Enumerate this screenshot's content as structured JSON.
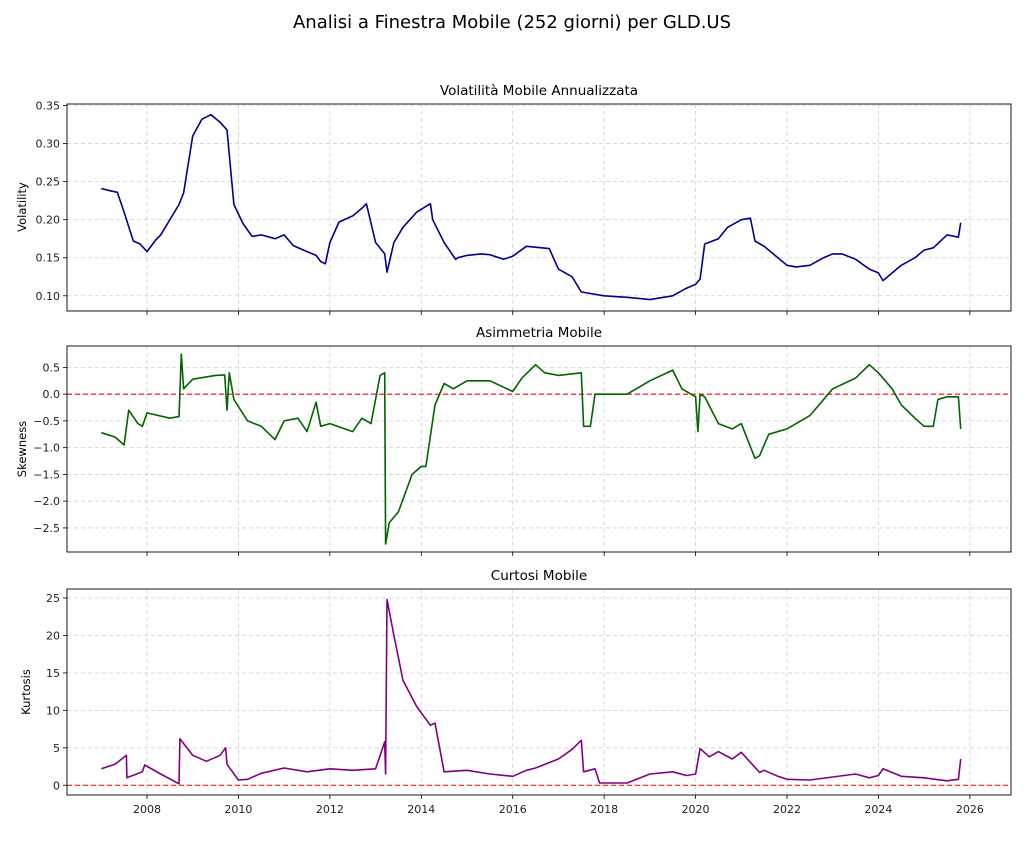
{
  "figure": {
    "suptitle": "Analisi a Finestra Mobile (252 giorni) per GLD.US"
  },
  "chart_data": [
    {
      "type": "line",
      "title": "Volatilità Mobile Annualizzata",
      "xlabel": "",
      "ylabel": "Volatility",
      "color": "#00008b",
      "ylim": [
        0.08,
        0.352
      ],
      "yticks": [
        "0.10",
        "0.15",
        "0.20",
        "0.25",
        "0.30",
        "0.35"
      ],
      "xticks": [
        "2008",
        "2010",
        "2012",
        "2014",
        "2016",
        "2018",
        "2020",
        "2022",
        "2024",
        "2026"
      ],
      "grid": true,
      "x": [
        2007.0,
        2007.2,
        2007.35,
        2007.5,
        2007.7,
        2007.85,
        2008.0,
        2008.2,
        2008.3,
        2008.5,
        2008.7,
        2008.8,
        2009.0,
        2009.2,
        2009.4,
        2009.6,
        2009.75,
        2009.9,
        2010.1,
        2010.3,
        2010.5,
        2010.8,
        2011.0,
        2011.2,
        2011.5,
        2011.7,
        2011.8,
        2011.9,
        2012.0,
        2012.2,
        2012.5,
        2012.7,
        2012.8,
        2013.0,
        2013.2,
        2013.25,
        2013.4,
        2013.6,
        2013.9,
        2014.2,
        2014.25,
        2014.5,
        2014.75,
        2014.8,
        2015.0,
        2015.3,
        2015.5,
        2015.8,
        2016.0,
        2016.3,
        2016.8,
        2017.0,
        2017.3,
        2017.5,
        2018.0,
        2018.5,
        2019.0,
        2019.5,
        2019.8,
        2020.0,
        2020.1,
        2020.2,
        2020.5,
        2020.7,
        2021.0,
        2021.2,
        2021.3,
        2021.5,
        2021.8,
        2022.0,
        2022.2,
        2022.5,
        2022.8,
        2023.0,
        2023.2,
        2023.5,
        2023.8,
        2024.0,
        2024.1,
        2024.5,
        2024.8,
        2025.0,
        2025.2,
        2025.5,
        2025.75,
        2025.8
      ],
      "values": [
        0.241,
        0.238,
        0.236,
        0.21,
        0.172,
        0.168,
        0.158,
        0.174,
        0.18,
        0.2,
        0.22,
        0.235,
        0.31,
        0.332,
        0.338,
        0.328,
        0.318,
        0.22,
        0.195,
        0.178,
        0.18,
        0.175,
        0.18,
        0.166,
        0.158,
        0.153,
        0.145,
        0.142,
        0.17,
        0.197,
        0.205,
        0.215,
        0.221,
        0.17,
        0.155,
        0.131,
        0.17,
        0.19,
        0.21,
        0.221,
        0.2,
        0.17,
        0.148,
        0.15,
        0.153,
        0.155,
        0.154,
        0.148,
        0.152,
        0.165,
        0.162,
        0.135,
        0.125,
        0.105,
        0.1,
        0.098,
        0.095,
        0.1,
        0.11,
        0.115,
        0.122,
        0.168,
        0.175,
        0.19,
        0.2,
        0.202,
        0.172,
        0.165,
        0.15,
        0.14,
        0.138,
        0.14,
        0.15,
        0.155,
        0.155,
        0.148,
        0.135,
        0.13,
        0.12,
        0.14,
        0.15,
        0.16,
        0.163,
        0.18,
        0.177,
        0.196
      ]
    },
    {
      "type": "line",
      "title": "Asimmetria Mobile",
      "xlabel": "",
      "ylabel": "Skewness",
      "color": "#006400",
      "ylim": [
        -2.95,
        0.9
      ],
      "yticks": [
        "0.5",
        "0.0",
        "−0.5",
        "−1.0",
        "−1.5",
        "−2.0",
        "−2.5"
      ],
      "xticks": [
        "2008",
        "2010",
        "2012",
        "2014",
        "2016",
        "2018",
        "2020",
        "2022",
        "2024",
        "2026"
      ],
      "grid": true,
      "reference_line": {
        "y": 0.0,
        "color": "#ff0000",
        "style": "dashed"
      },
      "x": [
        2007.0,
        2007.3,
        2007.5,
        2007.6,
        2007.8,
        2007.9,
        2008.0,
        2008.5,
        2008.7,
        2008.75,
        2008.8,
        2009.0,
        2009.5,
        2009.7,
        2009.75,
        2009.8,
        2009.9,
        2010.2,
        2010.5,
        2010.8,
        2011.0,
        2011.3,
        2011.5,
        2011.7,
        2011.8,
        2012.0,
        2012.5,
        2012.7,
        2012.9,
        2013.1,
        2013.2,
        2013.22,
        2013.3,
        2013.5,
        2013.8,
        2014.0,
        2014.1,
        2014.3,
        2014.5,
        2014.7,
        2015.0,
        2015.5,
        2016.0,
        2016.2,
        2016.5,
        2016.7,
        2017.0,
        2017.5,
        2017.55,
        2017.7,
        2017.8,
        2018.0,
        2018.5,
        2019.0,
        2019.5,
        2019.7,
        2019.9,
        2020.0,
        2020.05,
        2020.1,
        2020.2,
        2020.5,
        2020.8,
        2021.0,
        2021.3,
        2021.4,
        2021.6,
        2022.0,
        2022.5,
        2023.0,
        2023.5,
        2023.8,
        2024.0,
        2024.3,
        2024.5,
        2024.8,
        2025.0,
        2025.2,
        2025.3,
        2025.5,
        2025.75,
        2025.8
      ],
      "values": [
        -0.72,
        -0.8,
        -0.95,
        -0.3,
        -0.55,
        -0.6,
        -0.35,
        -0.45,
        -0.42,
        0.75,
        0.1,
        0.28,
        0.35,
        0.36,
        -0.3,
        0.4,
        -0.1,
        -0.5,
        -0.6,
        -0.85,
        -0.5,
        -0.45,
        -0.7,
        -0.15,
        -0.6,
        -0.55,
        -0.7,
        -0.45,
        -0.55,
        0.35,
        0.4,
        -2.8,
        -2.4,
        -2.2,
        -1.5,
        -1.35,
        -1.35,
        -0.2,
        0.2,
        0.1,
        0.25,
        0.25,
        0.05,
        0.3,
        0.55,
        0.4,
        0.35,
        0.4,
        -0.6,
        -0.6,
        0.0,
        0.0,
        0.0,
        0.25,
        0.45,
        0.1,
        0.0,
        -0.05,
        -0.7,
        0.0,
        -0.05,
        -0.55,
        -0.65,
        -0.55,
        -1.2,
        -1.15,
        -0.75,
        -0.65,
        -0.4,
        0.1,
        0.3,
        0.55,
        0.4,
        0.1,
        -0.2,
        -0.45,
        -0.6,
        -0.6,
        -0.1,
        -0.05,
        -0.05,
        -0.65
      ]
    },
    {
      "type": "line",
      "title": "Curtosi Mobile",
      "xlabel": "",
      "ylabel": "Kurtosis",
      "color": "#800080",
      "ylim": [
        -1.3,
        26.2
      ],
      "yticks": [
        "0",
        "5",
        "10",
        "15",
        "20",
        "25"
      ],
      "xticks": [
        "2008",
        "2010",
        "2012",
        "2014",
        "2016",
        "2018",
        "2020",
        "2022",
        "2024",
        "2026"
      ],
      "grid": true,
      "reference_line": {
        "y": 0.0,
        "color": "#ff0000",
        "style": "dashed"
      },
      "x": [
        2007.0,
        2007.3,
        2007.55,
        2007.56,
        2007.9,
        2007.95,
        2008.3,
        2008.7,
        2008.72,
        2009.0,
        2009.3,
        2009.6,
        2009.72,
        2009.75,
        2010.0,
        2010.2,
        2010.5,
        2011.0,
        2011.5,
        2012.0,
        2012.5,
        2013.0,
        2013.2,
        2013.22,
        2013.25,
        2013.4,
        2013.6,
        2013.9,
        2014.2,
        2014.3,
        2014.5,
        2015.0,
        2015.5,
        2016.0,
        2016.3,
        2016.5,
        2017.0,
        2017.3,
        2017.5,
        2017.55,
        2017.8,
        2017.9,
        2018.5,
        2019.0,
        2019.5,
        2019.8,
        2020.0,
        2020.1,
        2020.3,
        2020.5,
        2020.8,
        2021.0,
        2021.4,
        2021.5,
        2021.8,
        2022.0,
        2022.5,
        2023.0,
        2023.5,
        2023.8,
        2024.0,
        2024.1,
        2024.5,
        2025.0,
        2025.5,
        2025.75,
        2025.8
      ],
      "values": [
        2.2,
        2.8,
        4.0,
        1.0,
        1.8,
        2.7,
        1.5,
        0.2,
        6.2,
        4.0,
        3.2,
        4.0,
        5.0,
        2.8,
        0.7,
        0.8,
        1.6,
        2.3,
        1.8,
        2.2,
        2.0,
        2.2,
        5.8,
        1.5,
        24.8,
        20.0,
        14.0,
        10.5,
        8.0,
        8.3,
        1.8,
        2.0,
        1.5,
        1.2,
        2.0,
        2.3,
        3.5,
        4.8,
        6.0,
        1.8,
        2.2,
        0.3,
        0.3,
        1.5,
        1.8,
        1.3,
        1.5,
        4.9,
        3.8,
        4.5,
        3.5,
        4.4,
        1.7,
        2.0,
        1.2,
        0.8,
        0.7,
        1.1,
        1.5,
        1.0,
        1.3,
        2.2,
        1.2,
        1.0,
        0.6,
        0.8,
        3.5
      ]
    }
  ]
}
